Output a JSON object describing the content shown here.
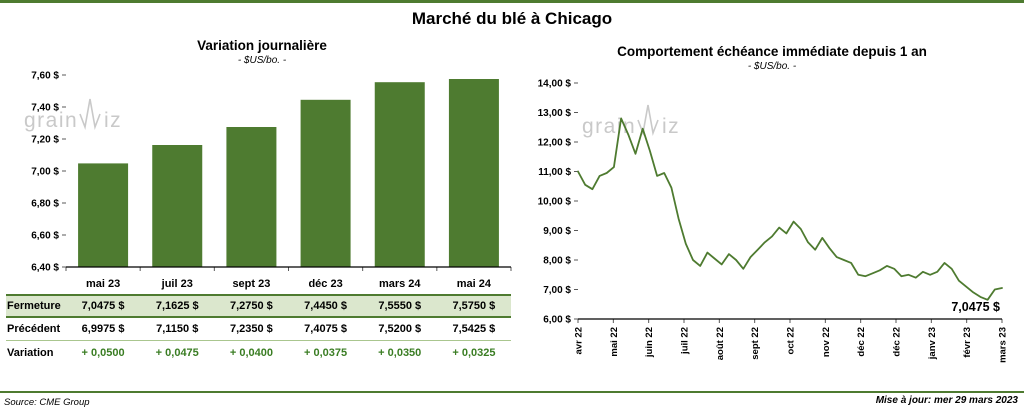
{
  "page": {
    "title": "Marché du blé à Chicago",
    "source": "Source: CME Group",
    "updated": "Mise à jour: mer 29 mars 2023",
    "watermark": "grainwiz",
    "accent_green": "#4e7b30",
    "highlight_row_bg": "#dbe7cd",
    "variation_green": "#3a7d23",
    "watermark_gray": "#c9c9c9"
  },
  "chart_data": [
    {
      "type": "bar",
      "title": "Variation journalière",
      "subtitle": "- $US/bo. -",
      "categories": [
        "mai 23",
        "juil 23",
        "sept 23",
        "déc 23",
        "mars 24",
        "mai 24"
      ],
      "values": [
        7.0475,
        7.1625,
        7.275,
        7.445,
        7.555,
        7.575
      ],
      "ylim": [
        6.4,
        7.6
      ],
      "ytick_step": 0.2,
      "ytick_labels": [
        "6,40 $",
        "6,60 $",
        "6,80 $",
        "7,00 $",
        "7,20 $",
        "7,40 $",
        "7,60 $"
      ],
      "bar_color": "#4e7b30",
      "grid": false,
      "legend": false
    },
    {
      "type": "line",
      "title": "Comportement échéance immédiate depuis 1 an",
      "subtitle": "- $US/bo. -",
      "x_labels": [
        "avr 22",
        "mai 22",
        "juin 22",
        "juil 22",
        "août 22",
        "sept 22",
        "oct 22",
        "nov 22",
        "déc 22",
        "déc 22",
        "janv 23",
        "févr 23",
        "mars 23"
      ],
      "ylim": [
        6.0,
        14.0
      ],
      "ytick_step": 1.0,
      "ytick_labels": [
        "6,00 $",
        "7,00 $",
        "8,00 $",
        "9,00 $",
        "10,00 $",
        "11,00 $",
        "12,00 $",
        "13,00 $",
        "14,00 $"
      ],
      "line_color": "#4e7b30",
      "end_label": "7,0475 $",
      "grid": false,
      "legend": false,
      "points": [
        11.0,
        10.55,
        10.4,
        10.85,
        10.95,
        11.15,
        12.8,
        12.25,
        11.6,
        12.45,
        11.7,
        10.85,
        10.95,
        10.45,
        9.4,
        8.55,
        8.0,
        7.8,
        8.25,
        8.05,
        7.85,
        8.2,
        8.0,
        7.7,
        8.1,
        8.35,
        8.6,
        8.8,
        9.1,
        8.9,
        9.3,
        9.05,
        8.6,
        8.35,
        8.75,
        8.4,
        8.1,
        8.0,
        7.9,
        7.5,
        7.45,
        7.55,
        7.65,
        7.8,
        7.7,
        7.45,
        7.5,
        7.4,
        7.6,
        7.5,
        7.6,
        7.9,
        7.7,
        7.3,
        7.1,
        6.9,
        6.75,
        6.65,
        7.0,
        7.05
      ]
    }
  ],
  "table": {
    "rows": [
      {
        "label": "Fermeture",
        "values": [
          "7,0475 $",
          "7,1625 $",
          "7,2750 $",
          "7,4450 $",
          "7,5550 $",
          "7,5750 $"
        ]
      },
      {
        "label": "Précédent",
        "values": [
          "6,9975 $",
          "7,1150 $",
          "7,2350 $",
          "7,4075 $",
          "7,5200 $",
          "7,5425 $"
        ]
      },
      {
        "label": "Variation",
        "values": [
          "+ 0,0500",
          "+ 0,0475",
          "+ 0,0400",
          "+ 0,0375",
          "+ 0,0350",
          "+ 0,0325"
        ]
      }
    ]
  }
}
